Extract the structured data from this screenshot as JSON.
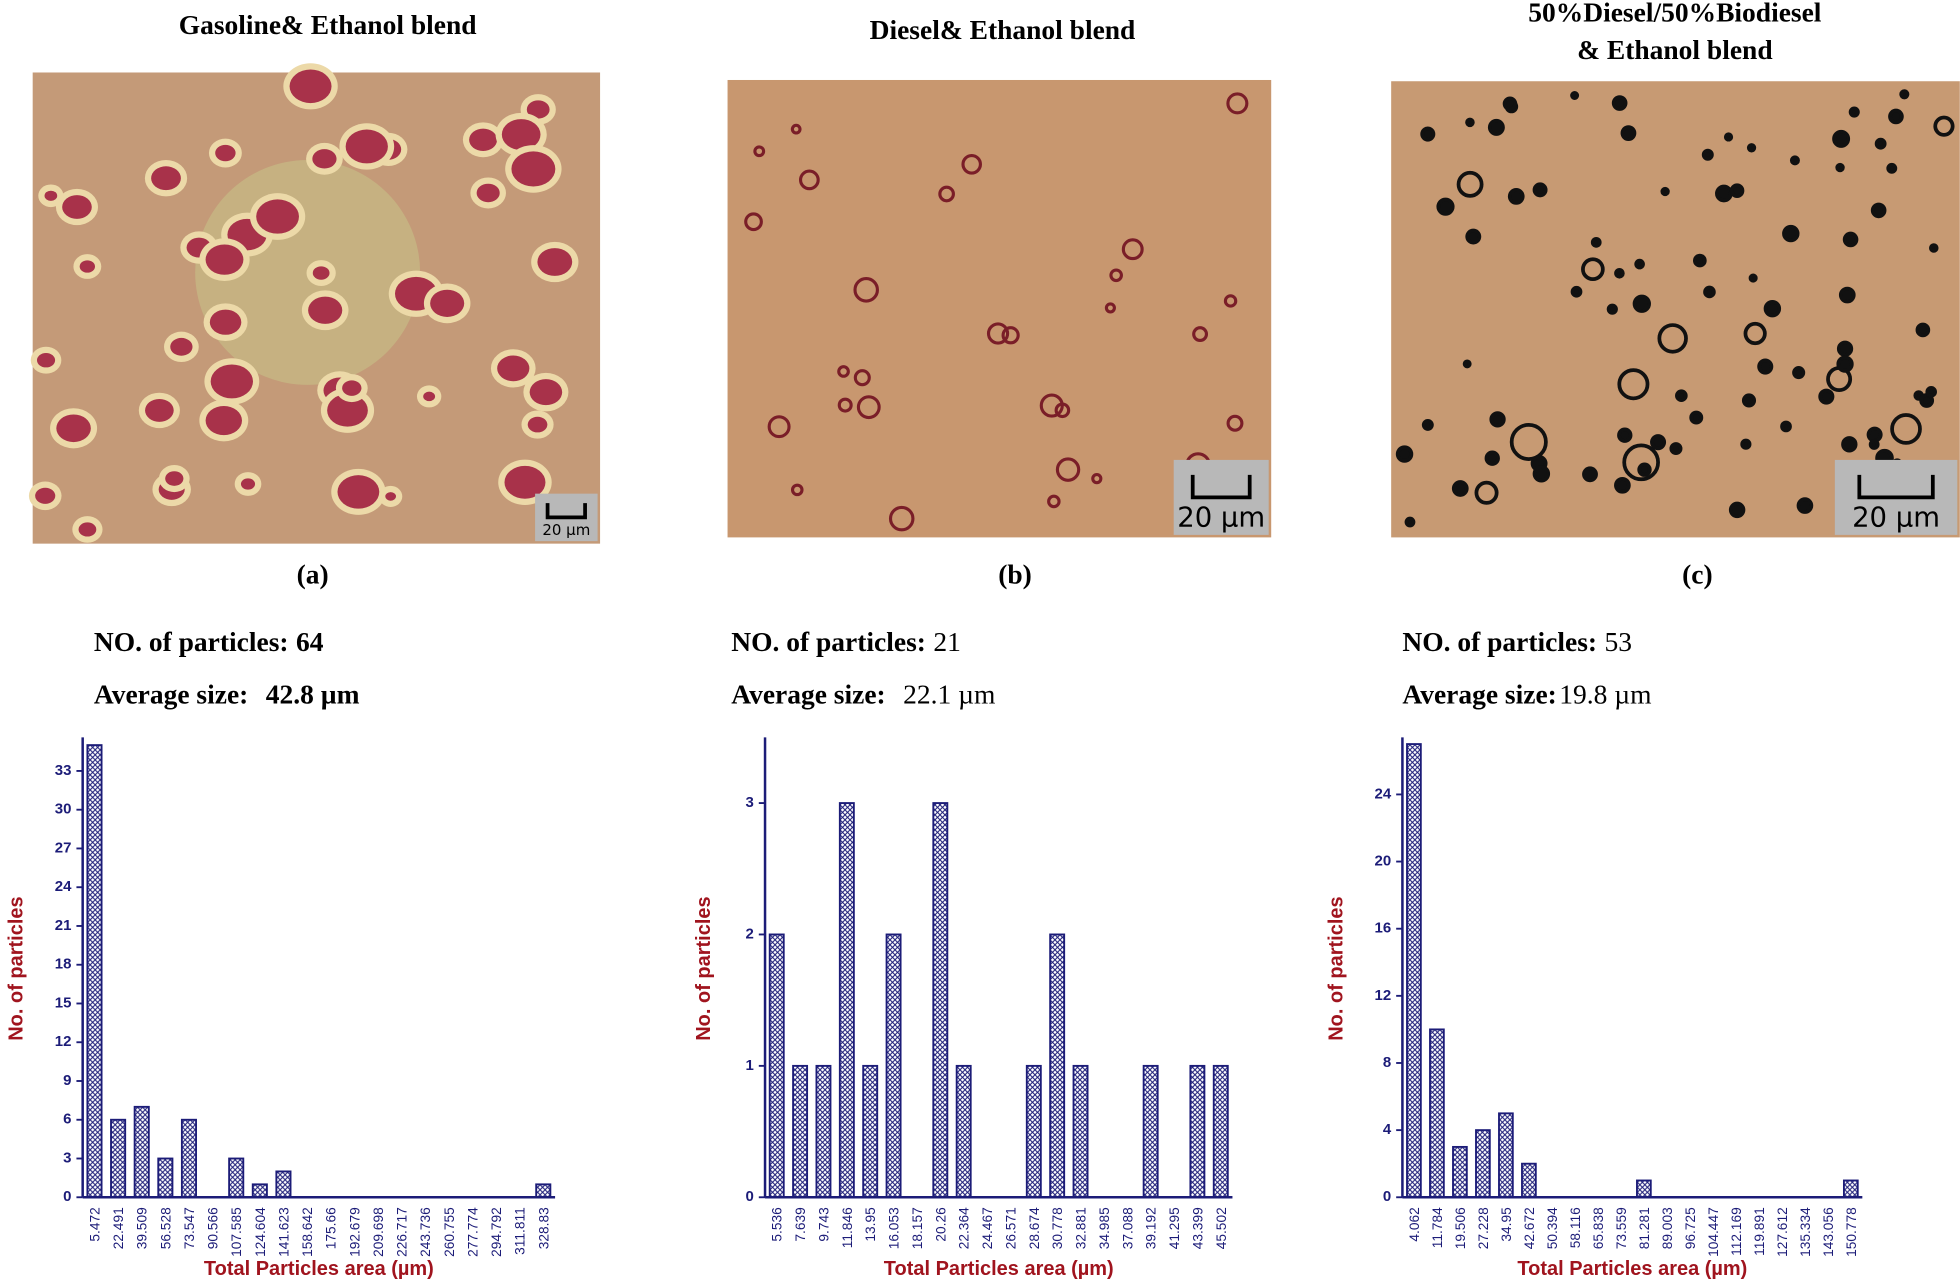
{
  "panels": [
    {
      "title": [
        "Gasoline& Ethanol blend"
      ],
      "label": "(a)",
      "scale_bar": "20 µm",
      "particles_label": "NO. of particles:",
      "particles": "64",
      "average_label": "Average size:",
      "average": "42.8 µm"
    },
    {
      "title": [
        "Diesel& Ethanol blend"
      ],
      "label": "(b)",
      "scale_bar": "20 µm",
      "particles_label": "NO. of particles:",
      "particles": "21",
      "average_label": "Average size:",
      "average": "22.1 µm"
    },
    {
      "title": [
        "50%Diesel/50%Biodiesel",
        "& Ethanol blend"
      ],
      "label": "(c)",
      "scale_bar": "20 µm",
      "particles_label": "NO. of particles:",
      "particles": "53",
      "average_label": "Average size:",
      "average": "19.8 µm"
    }
  ],
  "chart_data": [
    {
      "type": "bar",
      "ylabel": "No. of particles",
      "xlabel": "Total Particles area (µm)",
      "color": "#1c1c78",
      "label_color": "#a0141e",
      "categories": [
        "5.472",
        "22.491",
        "39.509",
        "56.528",
        "73.547",
        "90.566",
        "107.585",
        "124.604",
        "141.623",
        "158.642",
        "175.66",
        "192.679",
        "209.698",
        "226.717",
        "243.736",
        "260.755",
        "277.774",
        "294.792",
        "311.811",
        "328.83"
      ],
      "values": [
        35,
        6,
        7,
        3,
        6,
        0,
        3,
        1,
        2,
        0,
        0,
        0,
        0,
        0,
        0,
        0,
        0,
        0,
        0,
        1
      ],
      "ylim": [
        0,
        35.6
      ],
      "yticks": [
        0,
        3,
        6,
        9,
        12,
        15,
        18,
        21,
        24,
        27,
        30,
        33
      ]
    },
    {
      "type": "bar",
      "ylabel": "No. of particles",
      "xlabel": "Total Particles area (µm)",
      "color": "#1c1c78",
      "label_color": "#a0141e",
      "categories": [
        "5.536",
        "7.639",
        "9.743",
        "11.846",
        "13.95",
        "16.053",
        "18.157",
        "20.26",
        "22.364",
        "24.467",
        "26.571",
        "28.674",
        "30.778",
        "32.881",
        "34.985",
        "37.088",
        "39.192",
        "41.295",
        "43.399",
        "45.502"
      ],
      "values": [
        2,
        1,
        1,
        3,
        1,
        2,
        0,
        3,
        1,
        0,
        0,
        1,
        2,
        1,
        0,
        0,
        1,
        0,
        1,
        1
      ],
      "ylim": [
        0,
        3.5
      ],
      "yticks": [
        0,
        1,
        2,
        3
      ]
    },
    {
      "type": "bar",
      "ylabel": "No. of particles",
      "xlabel": "Total Particles area (µm)",
      "color": "#1c1c78",
      "label_color": "#a0141e",
      "categories": [
        "4.062",
        "11.784",
        "19.506",
        "27.228",
        "34.95",
        "42.672",
        "50.394",
        "58.116",
        "65.838",
        "73.559",
        "81.281",
        "89.003",
        "96.725",
        "104.447",
        "112.169",
        "119.891",
        "127.612",
        "135.334",
        "143.056",
        "150.778"
      ],
      "values": [
        27,
        10,
        3,
        4,
        5,
        2,
        0,
        0,
        0,
        0,
        1,
        0,
        0,
        0,
        0,
        0,
        0,
        0,
        0,
        1
      ],
      "ylim": [
        0,
        27.4
      ],
      "yticks": [
        0,
        4,
        8,
        12,
        16,
        20,
        24
      ]
    }
  ]
}
